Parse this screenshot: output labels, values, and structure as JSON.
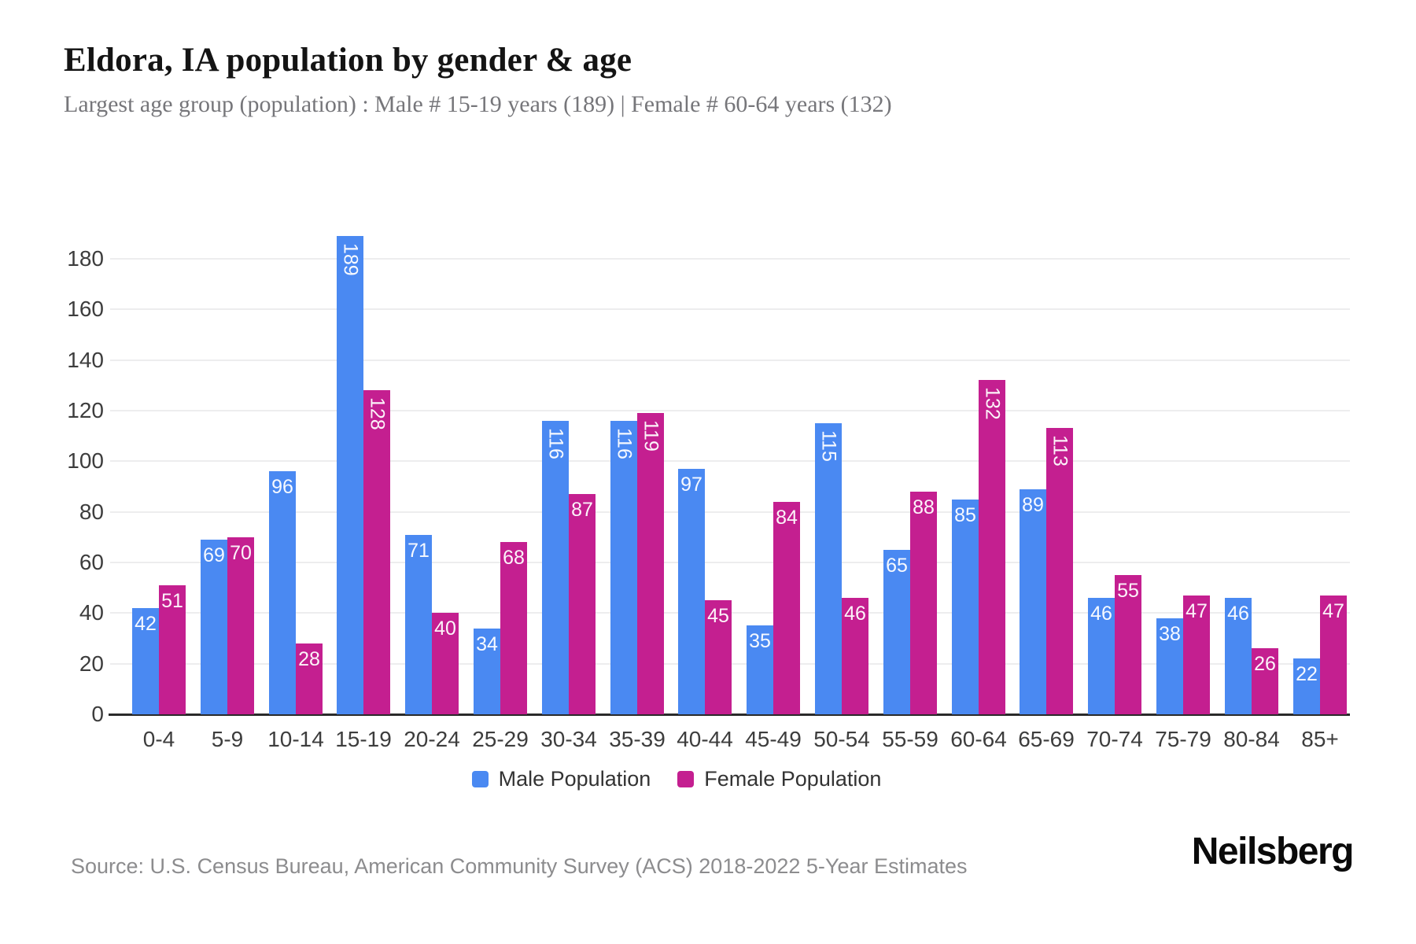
{
  "title": "Eldora, IA population by gender & age",
  "subtitle": "Largest age group (population) : Male # 15-19 years (189) | Female # 60-64 years (132)",
  "chart_data": {
    "type": "bar",
    "title": "Eldora, IA population by gender & age",
    "categories": [
      "0-4",
      "5-9",
      "10-14",
      "15-19",
      "20-24",
      "25-29",
      "30-34",
      "35-39",
      "40-44",
      "45-49",
      "50-54",
      "55-59",
      "60-64",
      "65-69",
      "70-74",
      "75-79",
      "80-84",
      "85+"
    ],
    "series": [
      {
        "name": "Male Population",
        "color": "#4a89f2",
        "values": [
          42,
          69,
          96,
          189,
          71,
          34,
          116,
          116,
          97,
          35,
          115,
          65,
          85,
          89,
          46,
          38,
          46,
          22
        ]
      },
      {
        "name": "Female Population",
        "color": "#c41f90",
        "values": [
          51,
          70,
          28,
          128,
          40,
          68,
          87,
          119,
          45,
          84,
          46,
          88,
          132,
          113,
          55,
          47,
          26,
          47
        ]
      }
    ],
    "xlabel": "",
    "ylabel": "",
    "ylim": [
      0,
      189
    ],
    "yticks": [
      0,
      20,
      40,
      60,
      80,
      100,
      120,
      140,
      160,
      180
    ],
    "grid": true,
    "legend_position": "bottom",
    "bar_label_color": "#ffffff",
    "grid_color": "#ededee",
    "axis_text_color": "#3d3d3d"
  },
  "footer": {
    "source": "Source: U.S. Census Bureau, American Community Survey (ACS) 2018-2022 5-Year Estimates",
    "brand": "Neilsberg"
  }
}
